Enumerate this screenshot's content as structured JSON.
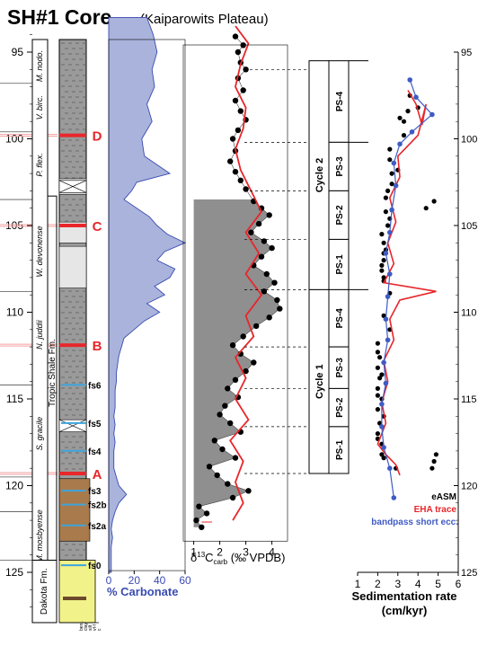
{
  "figure": {
    "title": "SH#1 Core",
    "subtitle": "(Kaiparowits Plateau)"
  },
  "colors": {
    "carbonate_fill": "#a9b3dc",
    "carbonate_line": "#3a4bb0",
    "carbon_fill": "#8f8f8f",
    "eha_red": "#e8262b",
    "bandpass_blue": "#3f5bc4",
    "marker_red": "#e8262b",
    "fs_blue": "#3da4dc",
    "lith_gray": "#9a9a9a",
    "lith_tan": "#a87a4c",
    "lith_yellow": "#f2f28a"
  },
  "depth_axis": {
    "ticks": [
      95,
      100,
      105,
      110,
      115,
      120,
      125
    ],
    "range": [
      93,
      128
    ]
  },
  "biozones": [
    "M. nodo.",
    "V. birc.",
    "P. flex.",
    "W. devonense",
    "N. juddii",
    "S. gracile",
    "M. mosbyense"
  ],
  "formations": [
    {
      "label": "Tropic Shale Fm."
    },
    {
      "label": "Dakota Fm."
    }
  ],
  "markers": [
    {
      "label": "D",
      "depth": 99.8
    },
    {
      "label": "C",
      "depth": 105.0
    },
    {
      "label": "B",
      "depth": 111.9
    },
    {
      "label": "A",
      "depth": 119.3
    }
  ],
  "flooding_surfaces": [
    {
      "label": "fs6",
      "depth": 114.4
    },
    {
      "label": "fs5",
      "depth": 116.6
    },
    {
      "label": "fs4",
      "depth": 118.2
    },
    {
      "label": "fs3",
      "depth": 120.5
    },
    {
      "label": "fs2b",
      "depth": 121.3
    },
    {
      "label": "fs2a",
      "depth": 122.5
    },
    {
      "label": "fs0",
      "depth": 124.8
    }
  ],
  "lithology_legend": [
    "bent.",
    "clay",
    "silt",
    "vf-f",
    "c"
  ],
  "chart_data": [
    {
      "type": "area",
      "name": "carbonate",
      "xlabel": "% Carbonate",
      "xticks": [
        0,
        20,
        40,
        60
      ],
      "xlim": [
        0,
        60
      ],
      "ylim": [
        93,
        128
      ],
      "y": [
        93,
        94,
        95,
        96,
        97,
        98,
        99,
        100,
        101,
        101.5,
        102,
        102.5,
        103,
        103.5,
        104,
        104.5,
        105,
        105.5,
        106,
        106.5,
        107,
        107.5,
        108,
        108.5,
        109,
        109.5,
        110,
        110.5,
        111,
        111.5,
        112,
        112.5,
        113,
        113.5,
        114,
        114.5,
        115,
        115.5,
        116,
        116.5,
        117,
        117.5,
        118,
        118.5,
        119,
        119.5,
        120,
        120.5,
        121,
        121.5,
        122,
        122.5,
        123,
        123.5,
        124,
        124.5,
        125
      ],
      "values": [
        30,
        35,
        38,
        34,
        36,
        30,
        34,
        26,
        28,
        38,
        48,
        22,
        18,
        12,
        22,
        32,
        38,
        46,
        60,
        44,
        38,
        52,
        48,
        36,
        44,
        30,
        40,
        28,
        20,
        12,
        10,
        8,
        7,
        6,
        6,
        5,
        5,
        5,
        4,
        5,
        4,
        5,
        4,
        4,
        4,
        6,
        8,
        14,
        8,
        5,
        3,
        2,
        3,
        2,
        2,
        2,
        2
      ]
    },
    {
      "type": "scatter",
      "name": "d13C",
      "xlabel": "δ13Ccarb (‰ VPDB)",
      "xticks": [
        1,
        2,
        3,
        4
      ],
      "xlim": [
        0.6,
        4.6
      ],
      "ylim": [
        93,
        128
      ],
      "points": [
        [
          2.6,
          94.1
        ],
        [
          2.9,
          94.6
        ],
        [
          2.7,
          95.0
        ],
        [
          2.8,
          95.6
        ],
        [
          3.0,
          96.0
        ],
        [
          2.7,
          96.5
        ],
        [
          2.9,
          97.2
        ],
        [
          2.6,
          97.8
        ],
        [
          2.8,
          98.4
        ],
        [
          3.0,
          98.9
        ],
        [
          2.7,
          99.5
        ],
        [
          2.5,
          100.0
        ],
        [
          2.6,
          100.7
        ],
        [
          2.4,
          101.3
        ],
        [
          2.6,
          101.9
        ],
        [
          2.8,
          102.4
        ],
        [
          3.0,
          102.9
        ],
        [
          3.3,
          103.6
        ],
        [
          3.6,
          104.0
        ],
        [
          3.9,
          104.4
        ],
        [
          3.5,
          104.9
        ],
        [
          3.2,
          105.4
        ],
        [
          3.7,
          105.9
        ],
        [
          4.0,
          106.3
        ],
        [
          3.6,
          106.8
        ],
        [
          3.3,
          107.3
        ],
        [
          3.8,
          107.8
        ],
        [
          4.1,
          108.3
        ],
        [
          3.7,
          108.8
        ],
        [
          4.2,
          109.3
        ],
        [
          4.3,
          109.8
        ],
        [
          3.9,
          110.3
        ],
        [
          3.4,
          110.8
        ],
        [
          2.9,
          111.4
        ],
        [
          2.5,
          111.9
        ],
        [
          2.8,
          112.4
        ],
        [
          3.3,
          112.9
        ],
        [
          3.0,
          113.4
        ],
        [
          2.6,
          113.9
        ],
        [
          2.3,
          114.4
        ],
        [
          2.7,
          114.9
        ],
        [
          2.2,
          115.4
        ],
        [
          2.0,
          115.9
        ],
        [
          2.4,
          116.4
        ],
        [
          2.8,
          116.9
        ],
        [
          1.8,
          117.4
        ],
        [
          2.1,
          117.9
        ],
        [
          2.6,
          118.4
        ],
        [
          1.6,
          118.9
        ],
        [
          1.9,
          119.4
        ],
        [
          2.3,
          119.9
        ],
        [
          3.1,
          120.3
        ],
        [
          2.5,
          120.7
        ],
        [
          1.2,
          121.2
        ],
        [
          1.5,
          121.6
        ],
        [
          1.1,
          122.0
        ],
        [
          1.3,
          122.4
        ]
      ],
      "eha_trace": [
        [
          2.6,
          93.5
        ],
        [
          3.1,
          94.5
        ],
        [
          2.8,
          95.7
        ],
        [
          2.6,
          97.0
        ],
        [
          3.0,
          98.2
        ],
        [
          2.9,
          99.4
        ],
        [
          2.6,
          100.6
        ],
        [
          2.8,
          101.8
        ],
        [
          3.2,
          103.0
        ],
        [
          3.6,
          104.2
        ],
        [
          3.0,
          105.4
        ],
        [
          3.5,
          106.6
        ],
        [
          3.0,
          107.8
        ],
        [
          3.6,
          109.0
        ],
        [
          3.0,
          110.2
        ],
        [
          3.3,
          111.4
        ],
        [
          2.6,
          112.6
        ],
        [
          3.0,
          113.8
        ],
        [
          2.6,
          115.0
        ],
        [
          3.1,
          116.2
        ],
        [
          2.4,
          117.4
        ],
        [
          2.9,
          118.6
        ],
        [
          2.6,
          119.8
        ],
        [
          2.9,
          121.0
        ],
        [
          2.5,
          122.0
        ]
      ]
    },
    {
      "type": "line",
      "name": "sedimentation_rate",
      "xlabel": "Sedimentation rate (cm/kyr)",
      "xticks": [
        1,
        2,
        3,
        4,
        5,
        6
      ],
      "xlim": [
        1,
        6
      ],
      "ylim": [
        95,
        125
      ],
      "series": [
        {
          "name": "eASM",
          "points": [
            [
              3.6,
              97.5
            ],
            [
              4.0,
              98.2
            ],
            [
              3.1,
              98.8
            ],
            [
              3.3,
              99.8
            ],
            [
              2.6,
              100.6
            ],
            [
              3.0,
              101.8
            ],
            [
              2.7,
              102.6
            ],
            [
              2.4,
              103.4
            ],
            [
              2.6,
              104.6
            ],
            [
              2.2,
              105.5
            ],
            [
              2.4,
              106.4
            ],
            [
              2.2,
              107.3
            ],
            [
              2.3,
              108.2
            ],
            [
              2.6,
              108.9
            ],
            [
              2.3,
              110.2
            ],
            [
              2.6,
              111.0
            ],
            [
              2.0,
              112.3
            ],
            [
              2.2,
              113.6
            ],
            [
              2.0,
              114.8
            ],
            [
              2.3,
              116.0
            ],
            [
              2.0,
              117.3
            ],
            [
              2.2,
              118.2
            ],
            [
              2.9,
              119.0
            ],
            [
              4.8,
              118.6
            ],
            [
              4.4,
              104.0
            ],
            [
              4.8,
              103.6
            ]
          ]
        },
        {
          "name": "EHA trace",
          "points": [
            [
              3.5,
              97.2
            ],
            [
              3.9,
              98.0
            ],
            [
              4.2,
              99.2
            ],
            [
              4.4,
              98.0
            ],
            [
              4.0,
              99.8
            ],
            [
              3.0,
              101.0
            ],
            [
              3.1,
              102.2
            ],
            [
              2.6,
              103.4
            ],
            [
              2.9,
              104.8
            ],
            [
              2.5,
              106.0
            ],
            [
              2.8,
              107.2
            ],
            [
              2.3,
              108.3
            ],
            [
              4.9,
              108.8
            ],
            [
              3.1,
              109.3
            ],
            [
              2.6,
              110.4
            ],
            [
              2.8,
              111.6
            ],
            [
              2.3,
              112.8
            ],
            [
              2.5,
              114.0
            ],
            [
              2.2,
              115.2
            ],
            [
              2.4,
              116.4
            ],
            [
              2.0,
              117.6
            ],
            [
              2.4,
              118.2
            ],
            [
              2.9,
              118.8
            ],
            [
              3.1,
              119.4
            ]
          ]
        },
        {
          "name": "bandpass short ecc.",
          "points": [
            [
              3.6,
              96.6
            ],
            [
              3.9,
              97.6
            ],
            [
              4.7,
              98.6
            ],
            [
              3.7,
              99.6
            ],
            [
              3.1,
              100.3
            ],
            [
              2.8,
              101.4
            ],
            [
              2.9,
              102.7
            ],
            [
              2.7,
              104.1
            ],
            [
              2.6,
              105.4
            ],
            [
              2.4,
              106.6
            ],
            [
              2.6,
              107.8
            ],
            [
              2.5,
              109.1
            ],
            [
              2.4,
              110.4
            ],
            [
              2.5,
              111.6
            ],
            [
              2.3,
              112.9
            ],
            [
              2.4,
              114.1
            ],
            [
              2.2,
              115.3
            ],
            [
              2.2,
              116.6
            ],
            [
              2.3,
              117.8
            ],
            [
              2.6,
              119.0
            ],
            [
              2.8,
              120.7
            ]
          ]
        }
      ]
    }
  ],
  "sequence_labels": {
    "cycles": [
      {
        "label": "Cycle 2",
        "top": 95.5,
        "bottom": 108.7
      },
      {
        "label": "Cycle 1",
        "top": 108.7,
        "bottom": 119.3
      }
    ],
    "packages": [
      {
        "label": "PS-4",
        "top": 95.5,
        "bottom": 100.2
      },
      {
        "label": "PS-3",
        "top": 100.2,
        "bottom": 103.0
      },
      {
        "label": "PS-2",
        "top": 103.0,
        "bottom": 105.8
      },
      {
        "label": "PS-1",
        "top": 105.8,
        "bottom": 108.7
      },
      {
        "label": "PS-4",
        "top": 108.7,
        "bottom": 112.0
      },
      {
        "label": "PS-3",
        "top": 112.0,
        "bottom": 114.4
      },
      {
        "label": "PS-2",
        "top": 114.4,
        "bottom": 116.6
      },
      {
        "label": "PS-1",
        "top": 116.6,
        "bottom": 119.3
      }
    ],
    "dashed_depths": [
      96.0,
      100.2,
      103.0,
      105.8,
      108.7,
      112.0,
      114.4,
      116.6,
      119.3
    ]
  },
  "sedrate_axis_ticks": [
    95,
    100,
    105,
    110,
    115,
    120,
    125
  ],
  "legend": {
    "easm": "eASM",
    "eha": "EHA trace",
    "bandpass": "bandpass short ecc."
  }
}
